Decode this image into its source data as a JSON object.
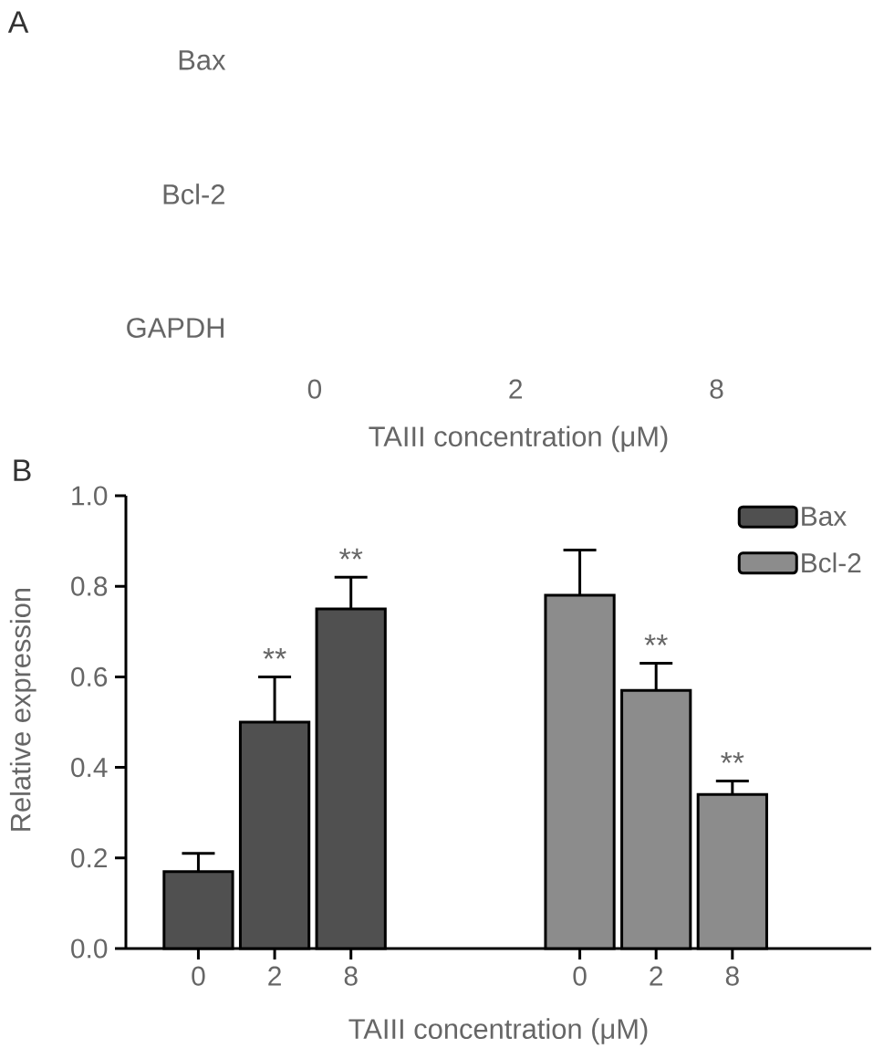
{
  "chart_data": [
    {
      "type": "other",
      "title": "A",
      "categories": [
        "0",
        "2",
        "8"
      ],
      "y_categories": [
        "Bax",
        "Bcl-2",
        "GAPDH"
      ],
      "xlabel": "TAIII concentration (μM)"
    },
    {
      "type": "bar",
      "title": "B",
      "categories": [
        "0",
        "2",
        "8",
        null,
        null,
        "0",
        "2",
        "8"
      ],
      "xlabel": "TAIII concentration (μM)",
      "ylabel": "Relative expression",
      "ylim": [
        0,
        1
      ],
      "yticks": [
        {
          "value": 0,
          "label": "0.0"
        },
        0.2,
        0.4,
        0.6,
        0.8,
        {
          "value": 1,
          "label": "1.0"
        }
      ],
      "legend": "top right",
      "series": [
        {
          "name": "Bax",
          "color": "#505050",
          "values": [
            0.17,
            0.5,
            0.75,
            null,
            null,
            null,
            null,
            null
          ],
          "errors": [
            [
              0.17,
              0.21
            ],
            [
              0.5,
              0.6
            ],
            [
              0.75,
              0.82
            ],
            null,
            null,
            null,
            null,
            null
          ],
          "value_labels": [
            null,
            "**",
            "**",
            null,
            null,
            null,
            null,
            null
          ]
        },
        {
          "name": "Bcl-2",
          "color": "#8c8c8c",
          "values": [
            null,
            null,
            null,
            null,
            null,
            0.78,
            0.57,
            0.34
          ],
          "errors": [
            null,
            null,
            null,
            null,
            null,
            [
              0.78,
              0.88
            ],
            [
              0.57,
              0.63
            ],
            [
              0.34,
              0.37
            ]
          ],
          "value_labels": [
            null,
            null,
            null,
            null,
            null,
            null,
            "**",
            "**"
          ]
        }
      ]
    }
  ]
}
